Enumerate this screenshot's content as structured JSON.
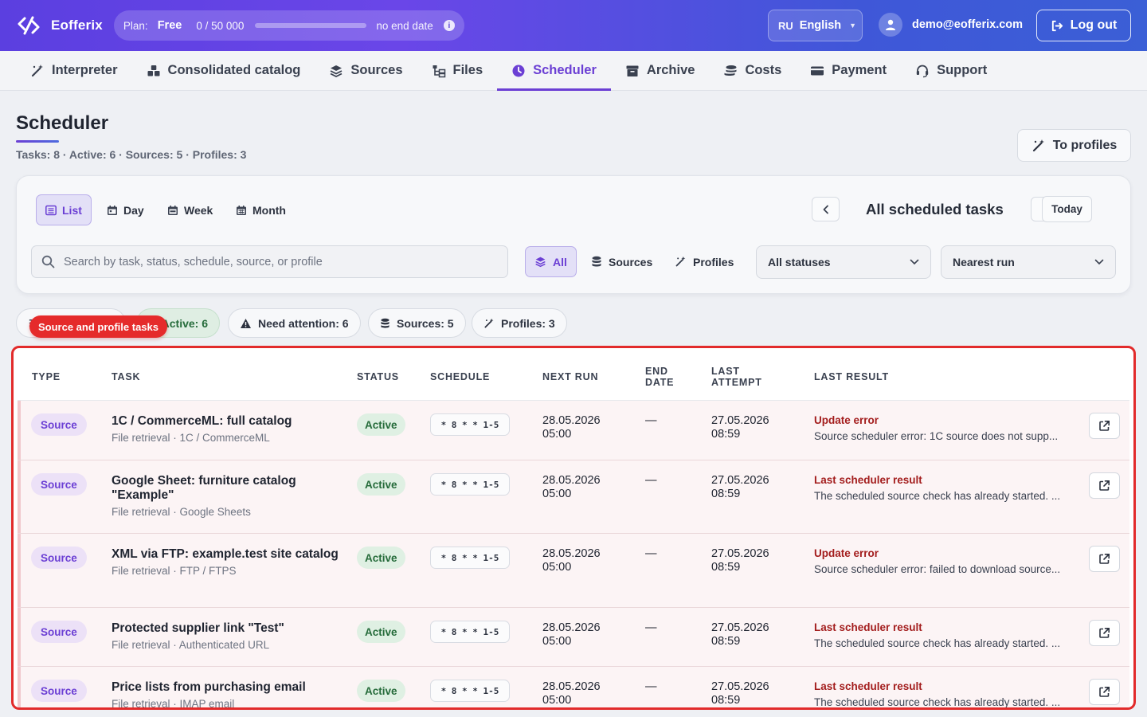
{
  "app": {
    "brand": "Eofferix",
    "plan_label": "Plan:",
    "plan_name": "Free",
    "plan_usage": "0 / 50 000",
    "plan_usage_fraction": 0,
    "plan_end": "no end date",
    "lang_code": "RU",
    "lang_name": "English",
    "user_email": "demo@eofferix.com",
    "logout_label": "Log out"
  },
  "nav": [
    {
      "label": "Interpreter",
      "icon": "magic-wand-icon"
    },
    {
      "label": "Consolidated catalog",
      "icon": "boxes-icon"
    },
    {
      "label": "Sources",
      "icon": "layers-icon"
    },
    {
      "label": "Files",
      "icon": "folder-tree-icon"
    },
    {
      "label": "Scheduler",
      "icon": "clock-icon",
      "active": true
    },
    {
      "label": "Archive",
      "icon": "archive-icon"
    },
    {
      "label": "Costs",
      "icon": "coins-icon"
    },
    {
      "label": "Payment",
      "icon": "credit-card-icon"
    },
    {
      "label": "Support",
      "icon": "headset-icon"
    }
  ],
  "page": {
    "title": "Scheduler",
    "subtitle": "Tasks: 8 · Active: 6 · Sources: 5 · Profiles: 3",
    "to_profiles_label": "To profiles"
  },
  "filters": {
    "views": [
      "List",
      "Day",
      "Week",
      "Month"
    ],
    "active_view": "List",
    "period_title": "All scheduled tasks",
    "today_label": "Today",
    "search_placeholder": "Search by task, status, schedule, source, or profile",
    "types": [
      "All",
      "Sources",
      "Profiles"
    ],
    "active_type": "All",
    "status_select": "All statuses",
    "sort_select": "Nearest run"
  },
  "chips": {
    "active": "Active: 6",
    "attention": "Need attention: 6",
    "sources": "Sources: 5",
    "profiles": "Profiles: 3",
    "tooltip": "Source and profile tasks"
  },
  "table": {
    "headers": {
      "type": "TYPE",
      "task": "TASK",
      "status": "STATUS",
      "schedule": "SCHEDULE",
      "next_run": "NEXT RUN",
      "end_date_1": "END",
      "end_date_2": "DATE",
      "last_attempt_1": "LAST",
      "last_attempt_2": "ATTEMPT",
      "last_result": "LAST RESULT"
    },
    "rows": [
      {
        "type": "Source",
        "title": "1C / CommerceML: full catalog",
        "subtitle": "File retrieval · 1C / CommerceML",
        "status": "Active",
        "schedule": "* 8 * * 1-5",
        "next_run_date": "28.05.2026",
        "next_run_time": "05:00",
        "end_date": "—",
        "last_attempt_date": "27.05.2026",
        "last_attempt_time": "08:59",
        "result_title": "Update error",
        "result_msg": "Source scheduler error: 1C source does not supp..."
      },
      {
        "type": "Source",
        "title": "Google Sheet: furniture catalog \"Example\"",
        "subtitle": "File retrieval · Google Sheets",
        "status": "Active",
        "schedule": "* 8 * * 1-5",
        "next_run_date": "28.05.2026",
        "next_run_time": "05:00",
        "end_date": "—",
        "last_attempt_date": "27.05.2026",
        "last_attempt_time": "08:59",
        "result_title": "Last scheduler result",
        "result_msg": "The scheduled source check has already started. ..."
      },
      {
        "type": "Source",
        "title": "XML via FTP: example.test site catalog",
        "subtitle": "File retrieval · FTP / FTPS",
        "status": "Active",
        "schedule": "* 8 * * 1-5",
        "next_run_date": "28.05.2026",
        "next_run_time": "05:00",
        "end_date": "—",
        "last_attempt_date": "27.05.2026",
        "last_attempt_time": "08:59",
        "result_title": "Update error",
        "result_msg": "Source scheduler error: failed to download source..."
      },
      {
        "type": "Source",
        "title": "Protected supplier link \"Test\"",
        "subtitle": "File retrieval · Authenticated URL",
        "status": "Active",
        "schedule": "* 8 * * 1-5",
        "next_run_date": "28.05.2026",
        "next_run_time": "05:00",
        "end_date": "—",
        "last_attempt_date": "27.05.2026",
        "last_attempt_time": "08:59",
        "result_title": "Last scheduler result",
        "result_msg": "The scheduled source check has already started. ..."
      },
      {
        "type": "Source",
        "title": "Price lists from purchasing email",
        "subtitle": "File retrieval · IMAP email",
        "status": "Active",
        "schedule": "* 8 * * 1-5",
        "next_run_date": "28.05.2026",
        "next_run_time": "05:00",
        "end_date": "—",
        "last_attempt_date": "27.05.2026",
        "last_attempt_time": "08:59",
        "result_title": "Last scheduler result",
        "result_msg": "The scheduled source check has already started. ..."
      }
    ]
  },
  "colors": {
    "accent": "#6b3fd4",
    "error": "#a31d1d",
    "success": "#256b3a",
    "highlight_border": "#e22b2b"
  }
}
